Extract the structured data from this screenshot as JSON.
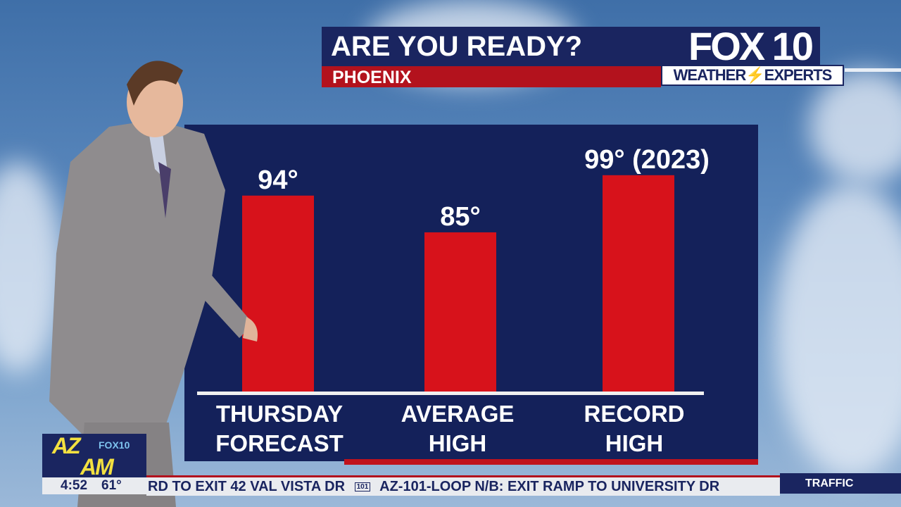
{
  "header": {
    "title": "ARE YOU READY?",
    "location": "PHOENIX",
    "brand": "FOX 10",
    "brand_sub": "WEATHER",
    "brand_sub2": "EXPERTS"
  },
  "chart_data": {
    "type": "bar",
    "categories": [
      [
        "THURSDAY",
        "FORECAST"
      ],
      [
        "AVERAGE",
        "HIGH"
      ],
      [
        "RECORD",
        "HIGH"
      ]
    ],
    "values": [
      94,
      85,
      99
    ],
    "data_labels": [
      "94°",
      "85°",
      "99° (2023)"
    ],
    "bar_color": "#d7121b",
    "ylim": [
      46,
      100
    ],
    "grid": false
  },
  "show": {
    "logo_az": "AZ",
    "logo_am": "AM",
    "logo_station": "FOX10",
    "time": "4:52",
    "temp": "61°"
  },
  "ticker": {
    "text": "RD TO EXIT 42 VAL VISTA DR",
    "shield": "101",
    "text2": "AZ-101-LOOP N/B: EXIT RAMP TO UNIVERSITY DR",
    "section": "TRAFFIC"
  }
}
